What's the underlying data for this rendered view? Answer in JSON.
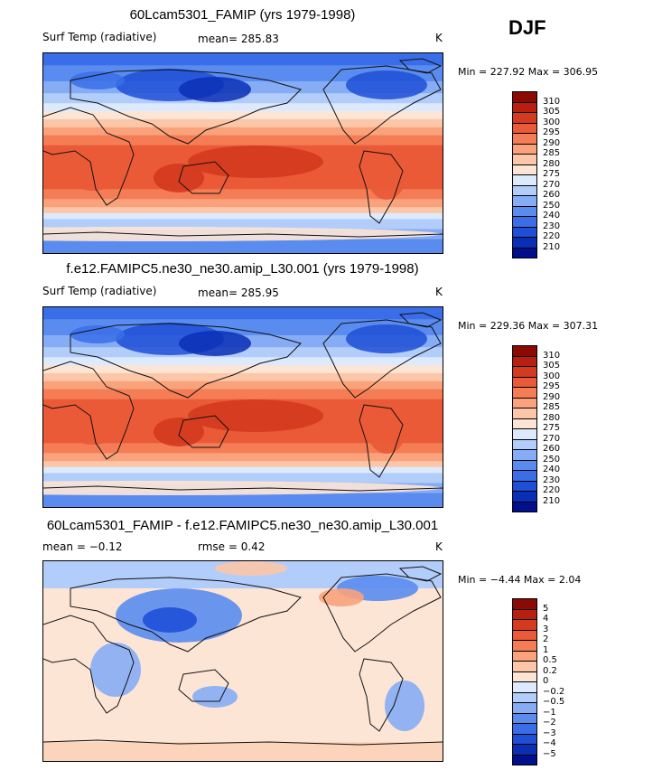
{
  "season": "DJF",
  "colors": {
    "scale": [
      "#000f8c",
      "#0a2fb5",
      "#1f4fd6",
      "#3a6ee8",
      "#5a8cf0",
      "#86acf5",
      "#b3cdfa",
      "#ddeafe",
      "#fde5d6",
      "#fcc7a8",
      "#f9a27c",
      "#f47d55",
      "#ea5a37",
      "#d43a1e",
      "#b81f0e",
      "#8c0a04"
    ],
    "land": "#111111"
  },
  "chart_data": [
    {
      "type": "heatmap",
      "title": "60Lcam5301_FAMIP (yrs 1979-1998)",
      "variable": "Surf Temp (radiative)",
      "mean_text": "mean= 285.83",
      "units": "K",
      "min_max_text": "Min = 227.92 Max = 306.95",
      "min": 227.92,
      "max": 306.95,
      "levels": [
        "310",
        "305",
        "300",
        "295",
        "290",
        "285",
        "280",
        "275",
        "270",
        "260",
        "250",
        "240",
        "230",
        "220",
        "210"
      ],
      "field": "absolute"
    },
    {
      "type": "heatmap",
      "title": "f.e12.FAMIPC5.ne30_ne30.amip_L30.001 (yrs 1979-1998)",
      "variable": "Surf Temp (radiative)",
      "mean_text": "mean= 285.95",
      "units": "K",
      "min_max_text": "Min = 229.36 Max = 307.31",
      "min": 229.36,
      "max": 307.31,
      "levels": [
        "310",
        "305",
        "300",
        "295",
        "290",
        "285",
        "280",
        "275",
        "270",
        "260",
        "250",
        "240",
        "230",
        "220",
        "210"
      ],
      "field": "absolute"
    },
    {
      "type": "heatmap",
      "title": "60Lcam5301_FAMIP - f.e12.FAMIPC5.ne30_ne30.amip_L30.001",
      "variable": "",
      "mean_text": "mean =   −0.12",
      "rmse_text": "rmse =    0.42",
      "units": "K",
      "min_max_text": "Min =  −4.44 Max =    2.04",
      "min": -4.44,
      "max": 2.04,
      "levels": [
        "5",
        "4",
        "3",
        "2",
        "1",
        "0.5",
        "0.2",
        "0",
        "−0.2",
        "−0.5",
        "−1",
        "−2",
        "−3",
        "−4",
        "−5"
      ],
      "field": "difference"
    }
  ]
}
